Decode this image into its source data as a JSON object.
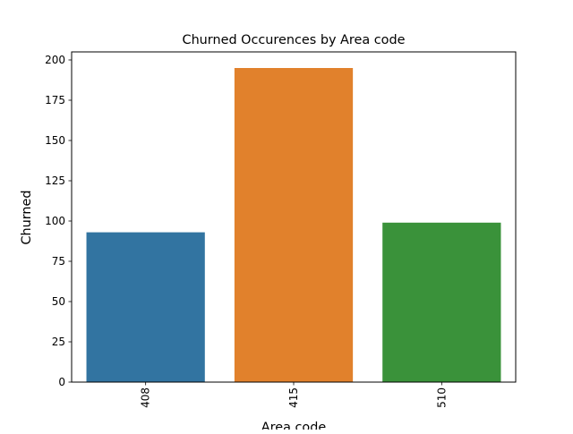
{
  "chart_data": {
    "type": "bar",
    "title": "Churned Occurences by Area code",
    "xlabel": "Area code",
    "ylabel": "Churned",
    "categories": [
      "408",
      "415",
      "510"
    ],
    "values": [
      93,
      195,
      99
    ],
    "colors": [
      "#3274a1",
      "#e1812c",
      "#3a923a"
    ],
    "ylim": [
      0,
      205
    ],
    "yticks": [
      0,
      25,
      50,
      75,
      100,
      125,
      150,
      175,
      200
    ],
    "grid": false,
    "legend": "none"
  }
}
